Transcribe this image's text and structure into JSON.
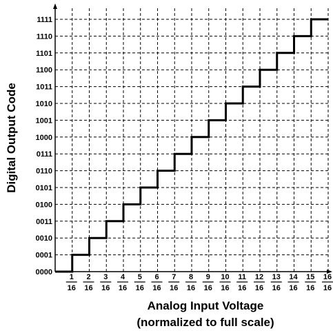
{
  "chart_data": {
    "type": "line",
    "title": "",
    "xlabel": "Analog Input Voltage",
    "xlabel_sub": "(normalized to full scale)",
    "ylabel": "Digital Output Code",
    "x_tick_labels": [
      {
        "num": "1",
        "den": "16"
      },
      {
        "num": "2",
        "den": "16"
      },
      {
        "num": "3",
        "den": "16"
      },
      {
        "num": "4",
        "den": "16"
      },
      {
        "num": "5",
        "den": "16"
      },
      {
        "num": "6",
        "den": "16"
      },
      {
        "num": "7",
        "den": "16"
      },
      {
        "num": "8",
        "den": "16"
      },
      {
        "num": "9",
        "den": "16"
      },
      {
        "num": "10",
        "den": "16"
      },
      {
        "num": "11",
        "den": "16"
      },
      {
        "num": "12",
        "den": "16"
      },
      {
        "num": "13",
        "den": "16"
      },
      {
        "num": "14",
        "den": "16"
      },
      {
        "num": "15",
        "den": "16"
      },
      {
        "num": "16",
        "den": "16"
      }
    ],
    "y_tick_labels": [
      "0000",
      "0001",
      "0010",
      "0011",
      "0100",
      "0101",
      "0110",
      "0111",
      "1000",
      "1001",
      "1010",
      "1011",
      "1100",
      "1101",
      "1110",
      "1111"
    ],
    "xlim": [
      0,
      1
    ],
    "ylim": [
      0,
      15
    ],
    "grid": true,
    "series": [
      {
        "x": [
          0,
          0.0625,
          0.125,
          0.1875,
          0.25,
          0.3125,
          0.375,
          0.4375,
          0.5,
          0.5625,
          0.625,
          0.6875,
          0.75,
          0.8125,
          0.875,
          0.9375,
          1
        ],
        "y": [
          0,
          1,
          2,
          3,
          4,
          5,
          6,
          7,
          8,
          9,
          10,
          11,
          12,
          13,
          14,
          15,
          15
        ],
        "step": "post"
      }
    ]
  }
}
